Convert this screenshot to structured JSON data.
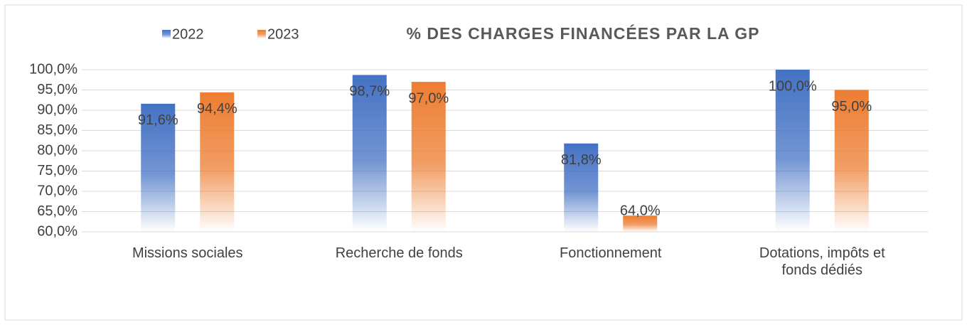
{
  "chart_data": {
    "type": "bar",
    "title": "% DES CHARGES FINANCÉES PAR LA GP",
    "categories": [
      "Missions sociales",
      "Recherche de fonds",
      "Fonctionnement",
      "Dotations, impôts et fonds dédiés"
    ],
    "series": [
      {
        "name": "2022",
        "color": "#4472c4",
        "values": [
          91.6,
          98.7,
          81.8,
          100.0
        ],
        "value_labels": [
          "91,6%",
          "98,7%",
          "81,8%",
          "100,0%"
        ]
      },
      {
        "name": "2023",
        "color": "#ed7d31",
        "values": [
          94.4,
          97.0,
          64.0,
          95.0
        ],
        "value_labels": [
          "94,4%",
          "97,0%",
          "64,0%",
          "95,0%"
        ]
      }
    ],
    "ylim": [
      60,
      100
    ],
    "yticks": [
      {
        "value": 60,
        "label": "60,0%"
      },
      {
        "value": 65,
        "label": "65,0%"
      },
      {
        "value": 70,
        "label": "70,0%"
      },
      {
        "value": 75,
        "label": "75,0%"
      },
      {
        "value": 80,
        "label": "80,0%"
      },
      {
        "value": 85,
        "label": "85,0%"
      },
      {
        "value": 90,
        "label": "90,0%"
      },
      {
        "value": 95,
        "label": "95,0%"
      },
      {
        "value": 100,
        "label": "100,0%"
      }
    ],
    "grid": true,
    "legend": "top-left"
  }
}
